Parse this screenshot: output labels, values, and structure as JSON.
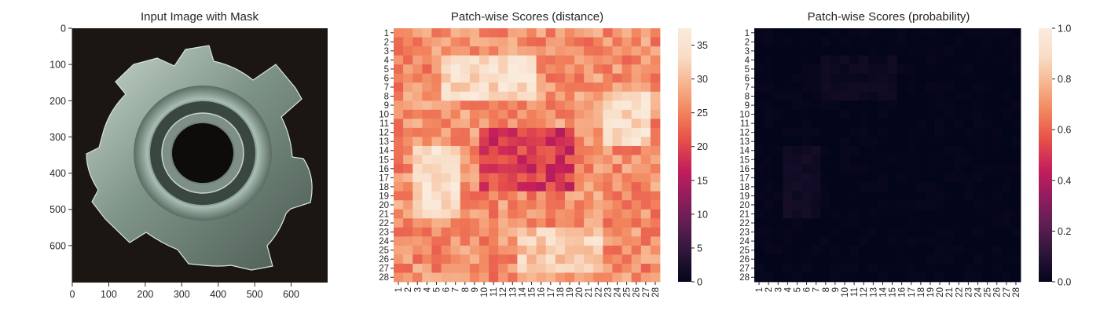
{
  "chart_data": [
    {
      "type": "image",
      "title": "Input Image with Mask",
      "image_description_name": "metal-tee-nut-photo",
      "xlim": [
        0,
        700
      ],
      "ylim": [
        700,
        0
      ],
      "xticks": [
        "0",
        "100",
        "200",
        "300",
        "400",
        "500",
        "600"
      ],
      "yticks": [
        "0",
        "100",
        "200",
        "300",
        "400",
        "500",
        "600"
      ],
      "tick_values": [
        0,
        100,
        200,
        300,
        400,
        500,
        600
      ]
    },
    {
      "type": "heatmap",
      "title": "Patch-wise Scores (distance)",
      "rows": 28,
      "cols": 28,
      "row_labels": [
        "1",
        "2",
        "3",
        "4",
        "5",
        "6",
        "7",
        "8",
        "9",
        "10",
        "11",
        "12",
        "13",
        "14",
        "15",
        "16",
        "17",
        "18",
        "19",
        "20",
        "21",
        "22",
        "23",
        "24",
        "25",
        "26",
        "27",
        "28"
      ],
      "col_labels": [
        "1",
        "2",
        "3",
        "4",
        "5",
        "6",
        "7",
        "8",
        "9",
        "10",
        "11",
        "12",
        "13",
        "14",
        "15",
        "16",
        "17",
        "18",
        "19",
        "20",
        "21",
        "22",
        "23",
        "24",
        "25",
        "26",
        "27",
        "28"
      ],
      "colormap": "rocket",
      "vmin": 0,
      "vmax": 37.5,
      "colorbar_ticks": [
        0,
        5,
        10,
        15,
        20,
        25,
        30,
        35
      ],
      "colorbar_tick_labels": [
        "0",
        "5",
        "10",
        "15",
        "20",
        "25",
        "30",
        "35"
      ],
      "approximate_regions": [
        {
          "region": "upper-center ring",
          "rows": [
            4,
            8
          ],
          "cols": [
            6,
            15
          ],
          "value_approx": 34
        },
        {
          "region": "left ring",
          "rows": [
            14,
            21
          ],
          "cols": [
            3,
            7
          ],
          "value_approx": 35
        },
        {
          "region": "right ring",
          "rows": [
            8,
            13
          ],
          "cols": [
            23,
            27
          ],
          "value_approx": 34
        },
        {
          "region": "bottom ring",
          "rows": [
            23,
            27
          ],
          "cols": [
            14,
            22
          ],
          "value_approx": 32
        },
        {
          "region": "center hole",
          "rows": [
            12,
            18
          ],
          "cols": [
            10,
            19
          ],
          "value_approx": 19
        },
        {
          "region": "background/edges",
          "value_approx": 26
        }
      ]
    },
    {
      "type": "heatmap",
      "title": "Patch-wise Scores (probability)",
      "rows": 28,
      "cols": 28,
      "row_labels": [
        "1",
        "2",
        "3",
        "4",
        "5",
        "6",
        "7",
        "8",
        "9",
        "10",
        "11",
        "12",
        "13",
        "14",
        "15",
        "16",
        "17",
        "18",
        "19",
        "20",
        "21",
        "22",
        "23",
        "24",
        "25",
        "26",
        "27",
        "28"
      ],
      "col_labels": [
        "1",
        "2",
        "3",
        "4",
        "5",
        "6",
        "7",
        "8",
        "9",
        "10",
        "11",
        "12",
        "13",
        "14",
        "15",
        "16",
        "17",
        "18",
        "19",
        "20",
        "21",
        "22",
        "23",
        "24",
        "25",
        "26",
        "27",
        "28"
      ],
      "colormap": "rocket",
      "vmin": 0,
      "vmax": 1.0,
      "colorbar_ticks": [
        0.0,
        0.2,
        0.4,
        0.6,
        0.8,
        1.0
      ],
      "colorbar_tick_labels": [
        "0.0",
        "0.2",
        "0.4",
        "0.6",
        "0.8",
        "1.0"
      ],
      "approximate_regions": [
        {
          "region": "nearly all patches",
          "value_approx": 0.0
        },
        {
          "region": "upper-center",
          "rows": [
            4,
            8
          ],
          "cols": [
            8,
            15
          ],
          "value_approx": 0.03
        },
        {
          "region": "left",
          "rows": [
            14,
            21
          ],
          "cols": [
            4,
            7
          ],
          "value_approx": 0.04
        }
      ]
    }
  ],
  "colors": {
    "rocket_stops": [
      "#03051a",
      "#2b1538",
      "#5b1e51",
      "#8f1d5d",
      "#c31e5b",
      "#e6504a",
      "#f2845d",
      "#f6b48e",
      "#f9ddc6",
      "#faebdd"
    ]
  }
}
